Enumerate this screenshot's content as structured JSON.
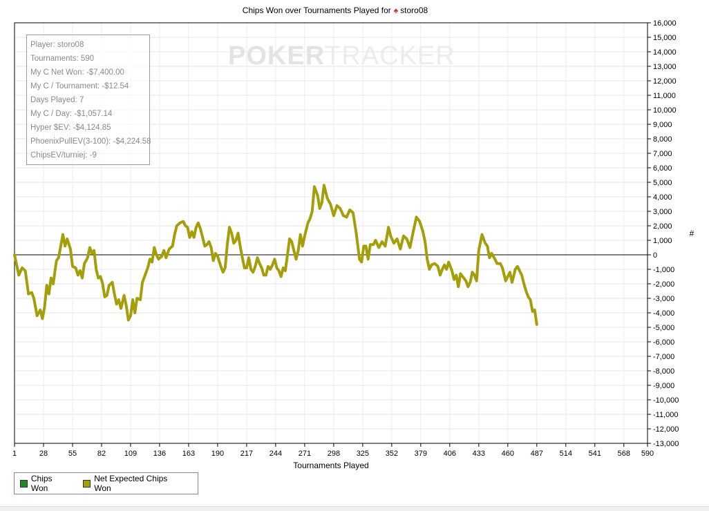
{
  "chart_data": {
    "type": "line",
    "title": "Chips Won over Tournaments Played for",
    "title_player": "storo08",
    "xlabel": "Tournaments Played",
    "ylabel": "#",
    "xlim": [
      1,
      590
    ],
    "ylim": [
      -13000,
      16000
    ],
    "x_ticks": [
      1,
      28,
      55,
      82,
      109,
      136,
      163,
      190,
      217,
      244,
      271,
      298,
      325,
      352,
      379,
      406,
      433,
      460,
      487,
      514,
      541,
      568,
      590
    ],
    "y_ticks": [
      16000,
      15000,
      14000,
      13000,
      12000,
      11000,
      10000,
      9000,
      8000,
      7000,
      6000,
      5000,
      4000,
      3000,
      2000,
      1000,
      0,
      -1000,
      -2000,
      -3000,
      -4000,
      -5000,
      -6000,
      -7000,
      -8000,
      -9000,
      -10000,
      -11000,
      -12000,
      -13000
    ],
    "y_tick_labels": [
      "16,000",
      "15,000",
      "14,000",
      "13,000",
      "12,000",
      "11,000",
      "10,000",
      "9,000",
      "8,000",
      "7,000",
      "6,000",
      "5,000",
      "4,000",
      "3,000",
      "2,000",
      "1,000",
      "0",
      "-1,000",
      "-2,000",
      "-3,000",
      "-4,000",
      "-5,000",
      "-6,000",
      "-7,000",
      "-8,000",
      "-9,000",
      "-10,000",
      "-11,000",
      "-12,000",
      "-13,000"
    ],
    "grid": true,
    "legend_position": "bottom-left",
    "series": [
      {
        "name": "Net Expected Chips Won",
        "color": "#a39e0a",
        "points": [
          [
            1,
            0
          ],
          [
            5,
            -1400
          ],
          [
            8,
            -900
          ],
          [
            11,
            -1100
          ],
          [
            14,
            -2700
          ],
          [
            17,
            -2600
          ],
          [
            19,
            -3000
          ],
          [
            22,
            -4200
          ],
          [
            25,
            -3800
          ],
          [
            27,
            -4400
          ],
          [
            29,
            -3600
          ],
          [
            31,
            -2100
          ],
          [
            33,
            -2700
          ],
          [
            35,
            -1600
          ],
          [
            37,
            -2000
          ],
          [
            40,
            -400
          ],
          [
            42,
            -200
          ],
          [
            44,
            600
          ],
          [
            46,
            1400
          ],
          [
            48,
            600
          ],
          [
            50,
            1100
          ],
          [
            53,
            400
          ],
          [
            55,
            -800
          ],
          [
            58,
            -900
          ],
          [
            60,
            -1400
          ],
          [
            62,
            -1100
          ],
          [
            64,
            -1600
          ],
          [
            66,
            -600
          ],
          [
            69,
            -200
          ],
          [
            71,
            500
          ],
          [
            73,
            100
          ],
          [
            75,
            300
          ],
          [
            77,
            -1000
          ],
          [
            79,
            -1600
          ],
          [
            81,
            -1500
          ],
          [
            83,
            -2000
          ],
          [
            85,
            -2900
          ],
          [
            87,
            -2800
          ],
          [
            89,
            -2100
          ],
          [
            92,
            -1900
          ],
          [
            94,
            -2700
          ],
          [
            96,
            -3400
          ],
          [
            98,
            -3100
          ],
          [
            100,
            -3700
          ],
          [
            103,
            -2800
          ],
          [
            105,
            -3500
          ],
          [
            107,
            -4500
          ],
          [
            109,
            -4200
          ],
          [
            111,
            -3100
          ],
          [
            113,
            -4000
          ],
          [
            115,
            -3000
          ],
          [
            118,
            -3100
          ],
          [
            120,
            -1900
          ],
          [
            123,
            -1300
          ],
          [
            125,
            -900
          ],
          [
            127,
            -300
          ],
          [
            129,
            -500
          ],
          [
            131,
            500
          ],
          [
            133,
            0
          ],
          [
            135,
            -300
          ],
          [
            138,
            -100
          ],
          [
            140,
            300
          ],
          [
            142,
            -200
          ],
          [
            145,
            400
          ],
          [
            148,
            600
          ],
          [
            150,
            1400
          ],
          [
            152,
            2000
          ],
          [
            155,
            2200
          ],
          [
            158,
            2300
          ],
          [
            160,
            2000
          ],
          [
            162,
            1900
          ],
          [
            164,
            1200
          ],
          [
            166,
            1600
          ],
          [
            168,
            1200
          ],
          [
            170,
            1900
          ],
          [
            172,
            2200
          ],
          [
            174,
            1800
          ],
          [
            176,
            1200
          ],
          [
            178,
            600
          ],
          [
            180,
            700
          ],
          [
            182,
            900
          ],
          [
            184,
            500
          ],
          [
            186,
            -400
          ],
          [
            188,
            100
          ],
          [
            190,
            -100
          ],
          [
            193,
            -800
          ],
          [
            195,
            -1200
          ],
          [
            197,
            -900
          ],
          [
            199,
            700
          ],
          [
            201,
            1900
          ],
          [
            203,
            1500
          ],
          [
            205,
            800
          ],
          [
            207,
            1000
          ],
          [
            209,
            1500
          ],
          [
            211,
            600
          ],
          [
            213,
            -200
          ],
          [
            215,
            -900
          ],
          [
            217,
            -900
          ],
          [
            219,
            -200
          ],
          [
            221,
            -1000
          ],
          [
            223,
            -1200
          ],
          [
            225,
            -800
          ],
          [
            227,
            -200
          ],
          [
            229,
            -600
          ],
          [
            231,
            -900
          ],
          [
            233,
            -1400
          ],
          [
            235,
            -1400
          ],
          [
            237,
            -800
          ],
          [
            239,
            -1000
          ],
          [
            241,
            -700
          ],
          [
            243,
            -300
          ],
          [
            245,
            -900
          ],
          [
            247,
            -1100
          ],
          [
            249,
            -1500
          ],
          [
            251,
            -900
          ],
          [
            253,
            -1100
          ],
          [
            255,
            0
          ],
          [
            257,
            1100
          ],
          [
            259,
            900
          ],
          [
            261,
            300
          ],
          [
            263,
            -300
          ],
          [
            265,
            300
          ],
          [
            267,
            1400
          ],
          [
            269,
            600
          ],
          [
            271,
            1300
          ],
          [
            274,
            2200
          ],
          [
            276,
            2500
          ],
          [
            278,
            3000
          ],
          [
            280,
            4700
          ],
          [
            283,
            4100
          ],
          [
            285,
            3200
          ],
          [
            287,
            3600
          ],
          [
            289,
            4800
          ],
          [
            292,
            3900
          ],
          [
            295,
            3500
          ],
          [
            298,
            2700
          ],
          [
            301,
            3400
          ],
          [
            304,
            3200
          ],
          [
            307,
            2700
          ],
          [
            310,
            2600
          ],
          [
            313,
            3100
          ],
          [
            316,
            2900
          ],
          [
            319,
            1500
          ],
          [
            322,
            -300
          ],
          [
            324,
            -500
          ],
          [
            326,
            600
          ],
          [
            328,
            600
          ],
          [
            330,
            -300
          ],
          [
            332,
            700
          ],
          [
            335,
            700
          ],
          [
            337,
            1000
          ],
          [
            340,
            500
          ],
          [
            343,
            900
          ],
          [
            346,
            600
          ],
          [
            349,
            1900
          ],
          [
            351,
            1300
          ],
          [
            354,
            800
          ],
          [
            357,
            1100
          ],
          [
            360,
            400
          ],
          [
            363,
            1300
          ],
          [
            366,
            1100
          ],
          [
            369,
            500
          ],
          [
            372,
            1600
          ],
          [
            375,
            2600
          ],
          [
            378,
            2300
          ],
          [
            381,
            1600
          ],
          [
            383,
            900
          ],
          [
            385,
            -300
          ],
          [
            387,
            -1000
          ],
          [
            389,
            -700
          ],
          [
            392,
            -600
          ],
          [
            395,
            -800
          ],
          [
            397,
            -1400
          ],
          [
            399,
            -1000
          ],
          [
            401,
            -700
          ],
          [
            403,
            -1000
          ],
          [
            405,
            -500
          ],
          [
            408,
            -1100
          ],
          [
            410,
            -1700
          ],
          [
            412,
            -1400
          ],
          [
            414,
            -2200
          ],
          [
            416,
            -1300
          ],
          [
            419,
            -1600
          ],
          [
            421,
            -1800
          ],
          [
            423,
            -2200
          ],
          [
            425,
            -1900
          ],
          [
            427,
            -1200
          ],
          [
            429,
            -1400
          ],
          [
            431,
            -1800
          ],
          [
            433,
            300
          ],
          [
            436,
            1400
          ],
          [
            439,
            800
          ],
          [
            441,
            600
          ],
          [
            443,
            -200
          ],
          [
            445,
            100
          ],
          [
            448,
            -300
          ],
          [
            450,
            -600
          ],
          [
            453,
            -600
          ],
          [
            455,
            -900
          ],
          [
            458,
            -1800
          ],
          [
            460,
            -1500
          ],
          [
            462,
            -1200
          ],
          [
            464,
            -1900
          ],
          [
            467,
            -1000
          ],
          [
            469,
            -800
          ],
          [
            471,
            -1100
          ],
          [
            473,
            -1400
          ],
          [
            475,
            -2000
          ],
          [
            477,
            -2500
          ],
          [
            479,
            -2900
          ],
          [
            481,
            -3100
          ],
          [
            483,
            -3900
          ],
          [
            485,
            -3800
          ],
          [
            487,
            -4800
          ]
        ]
      }
    ]
  },
  "stats": [
    "Player: storo08",
    "Tournaments: 590",
    "My C Net Won: -$7,400.00",
    "My C / Tournament: -$12.54",
    "Days Played: 7",
    "My C / Day: -$1,057.14",
    "Hyper $EV: -$4,124.85",
    "PhoenixPullEV(3-100): -$4,224.58",
    "ChipsEV/turniej: -9"
  ],
  "watermark": {
    "part1": "POKER",
    "part2": "TRACKER"
  },
  "legend": [
    {
      "label": "Chips Won",
      "color": "#1f8a1f"
    },
    {
      "label": "Net Expected Chips Won",
      "color": "#a39e0a"
    }
  ]
}
